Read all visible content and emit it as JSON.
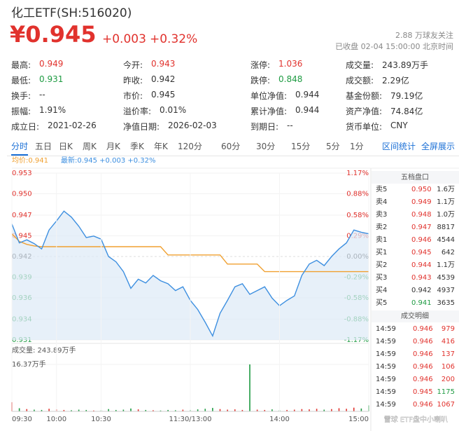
{
  "header": {
    "title": "化工ETF(SH:516020)",
    "price": "¥0.945",
    "change": "+0.003",
    "change_pct": "+0.32%",
    "followers": "2.88 万球友关注",
    "status": "已收盘 02-04 15:00:00 北京时间"
  },
  "stats": [
    [
      {
        "label": "最高:",
        "value": "0.949",
        "color": "#e1322d"
      },
      {
        "label": "今开:",
        "value": "0.943",
        "color": "#e1322d"
      },
      {
        "label": "涨停:",
        "value": "1.036",
        "color": "#e1322d"
      },
      {
        "label": "成交量:",
        "value": "243.89万手"
      }
    ],
    [
      {
        "label": "最低:",
        "value": "0.931",
        "color": "#1e9b42"
      },
      {
        "label": "昨收:",
        "value": "0.942"
      },
      {
        "label": "跌停:",
        "value": "0.848",
        "color": "#1e9b42"
      },
      {
        "label": "成交额:",
        "value": "2.29亿"
      }
    ],
    [
      {
        "label": "换手:",
        "value": "--"
      },
      {
        "label": "市价:",
        "value": "0.945"
      },
      {
        "label": "单位净值:",
        "value": "0.944"
      },
      {
        "label": "基金份额:",
        "value": "79.19亿"
      }
    ],
    [
      {
        "label": "振幅:",
        "value": "1.91%"
      },
      {
        "label": "溢价率:",
        "value": "0.01%"
      },
      {
        "label": "累计净值:",
        "value": "0.944"
      },
      {
        "label": "资产净值:",
        "value": "74.84亿"
      }
    ],
    [
      {
        "label": "成立日:",
        "value": "2021-02-26"
      },
      {
        "label": "净值日期:",
        "value": "2026-02-03"
      },
      {
        "label": "到期日:",
        "value": "--"
      },
      {
        "label": "货币单位:",
        "value": "CNY"
      }
    ]
  ],
  "tabs": [
    "分时",
    "五日",
    "日K",
    "周K",
    "月K",
    "季K",
    "年K",
    "120分",
    "60分",
    "30分",
    "15分",
    "5分",
    "1分"
  ],
  "tabs_right": [
    "区间统计",
    "全屏展示"
  ],
  "chart_data": [
    {
      "type": "line",
      "x": [
        0,
        5,
        10,
        15,
        20,
        25,
        30,
        35,
        40,
        45,
        50,
        55,
        60,
        65,
        70,
        75,
        80,
        85,
        90,
        95,
        100,
        105,
        110,
        115,
        120,
        125,
        130,
        135,
        140,
        145,
        150,
        155,
        160,
        165,
        170,
        175,
        180,
        185,
        190,
        195,
        200,
        205,
        210,
        215,
        220,
        225,
        230,
        235,
        240
      ],
      "xlim": [
        0,
        240
      ],
      "ylim": [
        0.93098,
        0.95302
      ],
      "yticks": [
        {
          "value": 0.95302,
          "label": "0.953"
        },
        {
          "value": 0.95029,
          "label": "0.950"
        },
        {
          "value": 0.94746,
          "label": "0.947"
        },
        {
          "value": 0.94473,
          "label": "0.945"
        },
        {
          "value": 0.942,
          "label": "0.942"
        },
        {
          "value": 0.93927,
          "label": "0.939"
        },
        {
          "value": 0.93654,
          "label": "0.936"
        },
        {
          "value": 0.93371,
          "label": "0.934"
        },
        {
          "value": 0.93098,
          "label": "0.931"
        }
      ],
      "y2lim": [
        -1.17,
        1.17
      ],
      "y2ticks": [
        {
          "value": 1.17,
          "label": "1.17%"
        },
        {
          "value": 0.88,
          "label": "0.88%"
        },
        {
          "value": 0.58,
          "label": "0.58%"
        },
        {
          "value": 0.29,
          "label": "0.29%"
        },
        {
          "value": 0.0,
          "label": "0.00%"
        },
        {
          "value": -0.29,
          "label": "-0.29%"
        },
        {
          "value": -0.58,
          "label": "-0.58%"
        },
        {
          "value": -0.88,
          "label": "-0.88%"
        },
        {
          "value": -1.17,
          "label": "-1.17%"
        }
      ],
      "tick_colors": [
        "#e1322d",
        "#333333",
        "#1e9b42"
      ],
      "series": [
        {
          "name": "均价:0.941",
          "color": "#f0a030",
          "values": [
            0.945,
            0.944,
            0.9436,
            0.9434,
            0.9433,
            0.9433,
            0.9433,
            0.9433,
            0.9433,
            0.9433,
            0.9433,
            0.9433,
            0.9433,
            0.9433,
            0.9433,
            0.9433,
            0.9433,
            0.9433,
            0.9433,
            0.9433,
            0.9433,
            0.9422,
            0.9422,
            0.9422,
            0.9422,
            0.9422,
            0.9422,
            0.9422,
            0.9422,
            0.941,
            0.941,
            0.941,
            0.941,
            0.941,
            0.94,
            0.94,
            0.94,
            0.94,
            0.94,
            0.94,
            0.94,
            0.94,
            0.94,
            0.94,
            0.94,
            0.94,
            0.94,
            0.94,
            0.94
          ]
        },
        {
          "name": "最新:0.945 +0.003 +0.32%",
          "color": "#3d8fe0",
          "fill": "#dde9f7",
          "values": [
            0.9463,
            0.9438,
            0.9442,
            0.9437,
            0.943,
            0.9455,
            0.9467,
            0.948,
            0.9472,
            0.946,
            0.9445,
            0.9447,
            0.9443,
            0.942,
            0.9413,
            0.94,
            0.9378,
            0.939,
            0.9385,
            0.9395,
            0.9388,
            0.9384,
            0.9375,
            0.938,
            0.9362,
            0.935,
            0.9333,
            0.9315,
            0.9345,
            0.9362,
            0.938,
            0.9384,
            0.937,
            0.9375,
            0.938,
            0.9365,
            0.9355,
            0.9362,
            0.9368,
            0.9395,
            0.941,
            0.9415,
            0.9408,
            0.942,
            0.943,
            0.9438,
            0.9455,
            0.9452,
            0.945
          ]
        }
      ]
    },
    {
      "type": "bar",
      "title": "成交量: 243.89万手",
      "x": [
        0,
        5,
        10,
        15,
        20,
        25,
        30,
        35,
        40,
        45,
        50,
        55,
        60,
        65,
        70,
        75,
        80,
        85,
        90,
        95,
        100,
        105,
        110,
        115,
        120,
        125,
        130,
        135,
        140,
        145,
        150,
        155,
        160,
        165,
        170,
        175,
        180,
        185,
        190,
        195,
        200,
        205,
        210,
        215,
        220,
        225,
        230,
        235,
        240
      ],
      "xlim": [
        0,
        240
      ],
      "xticks": [
        {
          "value": 0,
          "label": "09:30"
        },
        {
          "value": 30,
          "label": "10:00"
        },
        {
          "value": 60,
          "label": "10:30"
        },
        {
          "value": 120,
          "label": "11:30/13:00"
        },
        {
          "value": 180,
          "label": "14:00"
        },
        {
          "value": 240,
          "label": "15:00"
        }
      ],
      "ylim": [
        0,
        16.37
      ],
      "yticks": [
        {
          "value": 16.37,
          "label": "16.37万手"
        }
      ],
      "colors": [
        "#e1322d",
        "#1e9b42"
      ],
      "values": [
        3.2,
        1.1,
        0.8,
        0.6,
        0.5,
        0.9,
        0.7,
        0.5,
        0.4,
        0.6,
        0.5,
        0.3,
        0.4,
        0.8,
        0.5,
        0.6,
        1.0,
        0.7,
        0.5,
        0.4,
        0.3,
        0.5,
        0.4,
        0.6,
        0.5,
        0.7,
        0.9,
        1.2,
        0.8,
        0.6,
        0.7,
        0.5,
        16.37,
        0.6,
        0.5,
        0.7,
        0.4,
        0.5,
        0.6,
        0.8,
        0.7,
        0.9,
        0.6,
        0.8,
        1.1,
        0.9,
        1.3,
        1.0,
        2.1
      ]
    }
  ],
  "order_book": {
    "title": "五档盘口",
    "rows": [
      {
        "label": "卖5",
        "price": "0.950",
        "volume": "1.6万",
        "color": "#e1322d"
      },
      {
        "label": "卖4",
        "price": "0.949",
        "volume": "1.1万",
        "color": "#e1322d"
      },
      {
        "label": "卖3",
        "price": "0.948",
        "volume": "1.0万",
        "color": "#e1322d"
      },
      {
        "label": "卖2",
        "price": "0.947",
        "volume": "8817",
        "color": "#e1322d"
      },
      {
        "label": "卖1",
        "price": "0.946",
        "volume": "4544",
        "color": "#e1322d"
      },
      {
        "label": "买1",
        "price": "0.945",
        "volume": "642",
        "color": "#e1322d"
      },
      {
        "label": "买2",
        "price": "0.944",
        "volume": "1.1万",
        "color": "#e1322d"
      },
      {
        "label": "买3",
        "price": "0.943",
        "volume": "4539",
        "color": "#e1322d"
      },
      {
        "label": "买4",
        "price": "0.942",
        "volume": "4937",
        "color": "#333333"
      },
      {
        "label": "买5",
        "price": "0.941",
        "volume": "3635",
        "color": "#1e9b42"
      }
    ]
  },
  "trades": {
    "title": "成交明细",
    "rows": [
      {
        "time": "14:59",
        "price": "0.946",
        "volume": "979",
        "color": "#e1322d"
      },
      {
        "time": "14:59",
        "price": "0.946",
        "volume": "416",
        "color": "#e1322d"
      },
      {
        "time": "14:59",
        "price": "0.946",
        "volume": "137",
        "color": "#e1322d"
      },
      {
        "time": "14:59",
        "price": "0.946",
        "volume": "106",
        "color": "#e1322d"
      },
      {
        "time": "14:59",
        "price": "0.946",
        "volume": "200",
        "color": "#e1322d"
      },
      {
        "time": "14:59",
        "price": "0.945",
        "volume": "1175",
        "color": "#1e9b42"
      },
      {
        "time": "14:59",
        "price": "0.946",
        "volume": "1067",
        "color": "#e1322d"
      }
    ]
  },
  "watermark": "雪球 ETF盘中小喇叭"
}
